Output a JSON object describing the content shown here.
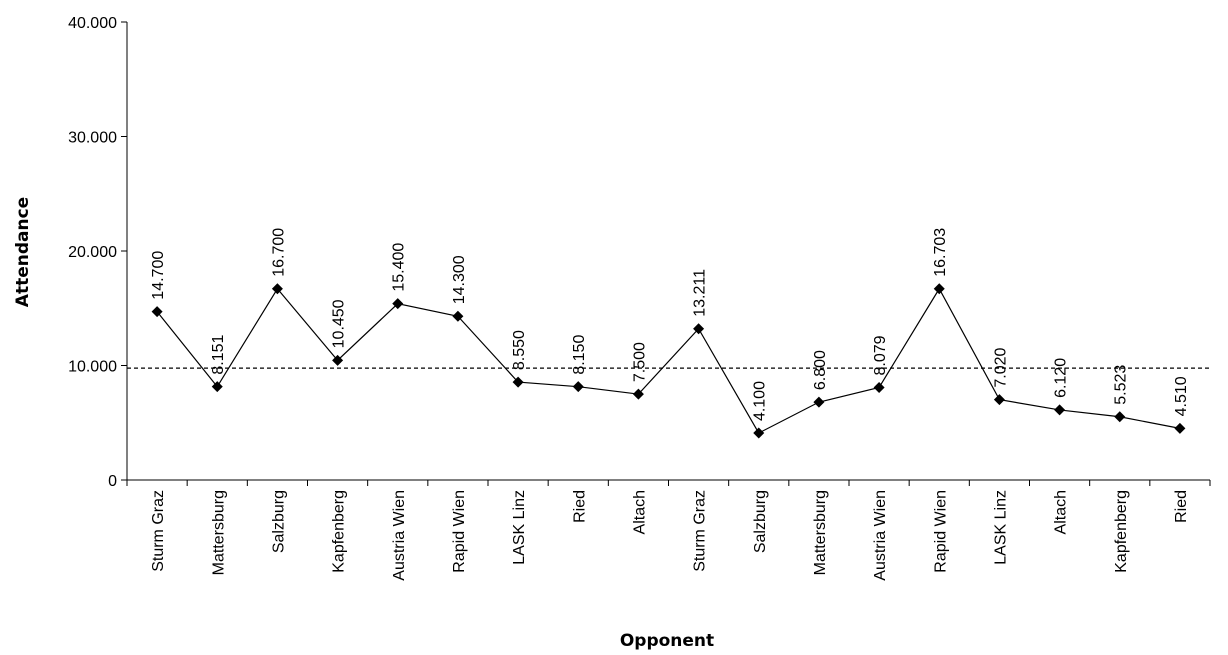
{
  "chart_data": {
    "type": "line",
    "title": "",
    "xlabel": "Opponent",
    "ylabel": "Attendance",
    "ylim": [
      0,
      40000
    ],
    "y_ticks": [
      0,
      10000,
      20000,
      30000,
      40000
    ],
    "y_tick_labels": [
      "0",
      "10.000",
      "20.000",
      "30.000",
      "40.000"
    ],
    "grid": false,
    "legend": "none",
    "categories": [
      "Sturm Graz",
      "Mattersburg",
      "Salzburg",
      "Kapfenberg",
      "Austria Wien",
      "Rapid Wien",
      "LASK Linz",
      "Ried",
      "Altach",
      "Sturm Graz",
      "Salzburg",
      "Mattersburg",
      "Austria Wien",
      "Rapid Wien",
      "LASK Linz",
      "Altach",
      "Kapfenberg",
      "Ried"
    ],
    "series": [
      {
        "values": [
          14700,
          8151,
          16700,
          10450,
          15400,
          14300,
          8550,
          8150,
          7500,
          13211,
          4100,
          6800,
          8079,
          16703,
          7020,
          6120,
          5523,
          4510
        ],
        "data_labels": [
          "14.700",
          "8.151",
          "16.700",
          "10.450",
          "15.400",
          "14.300",
          "8.550",
          "8.150",
          "7.500",
          "13.211",
          "4.100",
          "6.800",
          "8.079",
          "16.703",
          "7.020",
          "6.120",
          "5.523",
          "4.510"
        ],
        "color": "#000000",
        "marker": "diamond"
      }
    ],
    "average_line": {
      "value": 9770,
      "style": "dashed",
      "color": "#000000"
    }
  }
}
